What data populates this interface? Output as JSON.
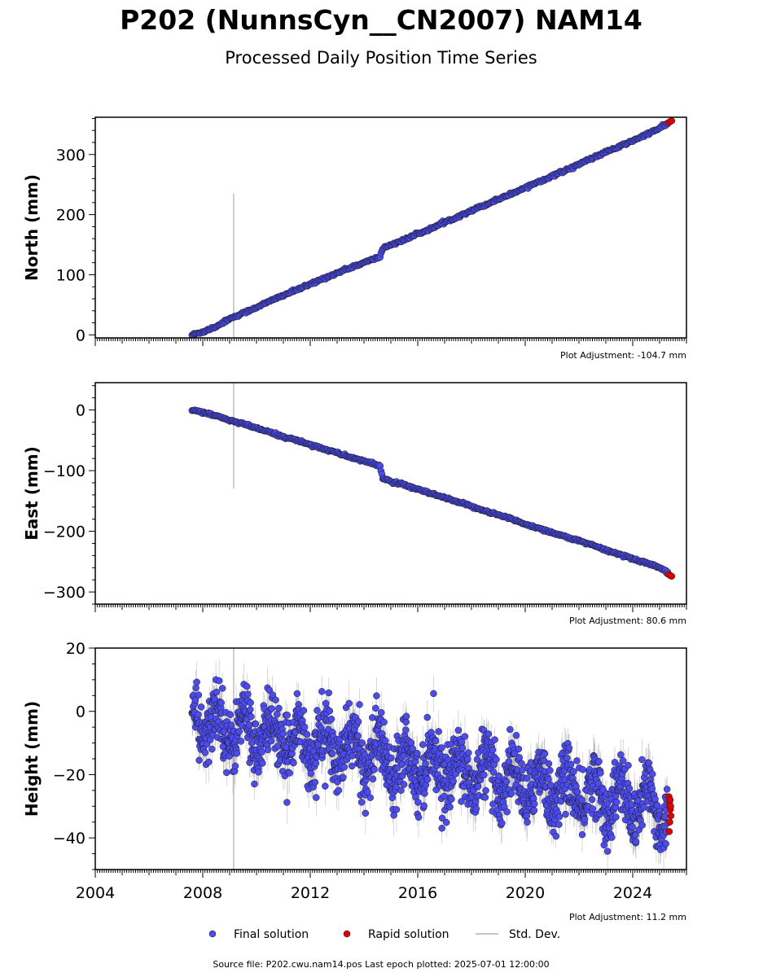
{
  "title": "P202 (NunnsCyn__CN2007) NAM14",
  "subtitle": "Processed Daily Position Time Series",
  "source_note": "Source file: P202.cwu.nam14.pos  Last epoch plotted: 2025-07-01 12:00:00",
  "legend": {
    "final": "Final solution",
    "rapid": "Rapid solution",
    "stddev": "Std. Dev."
  },
  "colors": {
    "final": "#4b4bf0",
    "rapid": "#e00000",
    "stddev": "#b4b4b4",
    "edge": "#1a1a1a"
  },
  "x_tick_labels": [
    "2004",
    "2008",
    "2012",
    "2016",
    "2020",
    "2024"
  ],
  "chart_data": [
    {
      "type": "scatter",
      "panel": "north",
      "ylabel": "North (mm)",
      "adjustment": "Plot Adjustment: -104.7 mm",
      "xlim": [
        2004.0,
        2026.0
      ],
      "ylim": [
        -5,
        362
      ],
      "yticks": [
        0,
        100,
        200,
        300
      ],
      "ytick_labels": [
        "0",
        "100",
        "200",
        "300"
      ],
      "minor_step": 20,
      "outlier_errorbar": {
        "x": 2009.15,
        "y1": -8,
        "y2": 235
      },
      "series": [
        {
          "name": "Final solution",
          "points": [
            [
              2007.6,
              0
            ],
            [
              2008.0,
              5
            ],
            [
              2008.5,
              14
            ],
            [
              2009.0,
              27
            ],
            [
              2009.5,
              36
            ],
            [
              2010.0,
              46
            ],
            [
              2010.5,
              56
            ],
            [
              2011.0,
              66
            ],
            [
              2011.5,
              75
            ],
            [
              2012.0,
              84
            ],
            [
              2012.5,
              94
            ],
            [
              2013.0,
              103
            ],
            [
              2013.5,
              112
            ],
            [
              2014.0,
              120
            ],
            [
              2014.6,
              130
            ],
            [
              2014.7,
              144
            ],
            [
              2015.0,
              150
            ],
            [
              2015.5,
              158
            ],
            [
              2016.0,
              168
            ],
            [
              2016.5,
              177
            ],
            [
              2017.0,
              187
            ],
            [
              2017.5,
              197
            ],
            [
              2018.0,
              207
            ],
            [
              2018.5,
              216
            ],
            [
              2019.0,
              226
            ],
            [
              2019.5,
              235
            ],
            [
              2020.0,
              245
            ],
            [
              2020.5,
              255
            ],
            [
              2021.0,
              264
            ],
            [
              2021.5,
              274
            ],
            [
              2022.0,
              284
            ],
            [
              2022.5,
              294
            ],
            [
              2023.0,
              304
            ],
            [
              2023.5,
              313
            ],
            [
              2024.0,
              323
            ],
            [
              2024.5,
              333
            ],
            [
              2025.0,
              344
            ],
            [
              2025.3,
              351
            ]
          ]
        },
        {
          "name": "Rapid solution",
          "points": [
            [
              2025.33,
              353
            ],
            [
              2025.4,
              355
            ],
            [
              2025.45,
              356
            ]
          ]
        }
      ]
    },
    {
      "type": "scatter",
      "panel": "east",
      "ylabel": "East (mm)",
      "adjustment": "Plot Adjustment: 80.6 mm",
      "xlim": [
        2004.0,
        2026.0
      ],
      "ylim": [
        -320,
        45
      ],
      "yticks": [
        0,
        -100,
        -200,
        -300
      ],
      "ytick_labels": [
        "0",
        "−100",
        "−200",
        "−300"
      ],
      "minor_step": 20,
      "outlier_errorbar": {
        "x": 2009.15,
        "y1": -130,
        "y2": 45
      },
      "series": [
        {
          "name": "Final solution",
          "points": [
            [
              2007.6,
              0
            ],
            [
              2008.0,
              -4
            ],
            [
              2008.5,
              -10
            ],
            [
              2009.0,
              -17
            ],
            [
              2009.5,
              -23
            ],
            [
              2010.0,
              -30
            ],
            [
              2010.5,
              -37
            ],
            [
              2011.0,
              -44
            ],
            [
              2011.5,
              -50
            ],
            [
              2012.0,
              -57
            ],
            [
              2012.5,
              -64
            ],
            [
              2013.0,
              -71
            ],
            [
              2013.5,
              -78
            ],
            [
              2014.0,
              -84
            ],
            [
              2014.6,
              -93
            ],
            [
              2014.7,
              -112
            ],
            [
              2015.0,
              -118
            ],
            [
              2015.5,
              -124
            ],
            [
              2016.0,
              -131
            ],
            [
              2016.5,
              -138
            ],
            [
              2017.0,
              -145
            ],
            [
              2017.5,
              -152
            ],
            [
              2018.0,
              -159
            ],
            [
              2018.5,
              -166
            ],
            [
              2019.0,
              -173
            ],
            [
              2019.5,
              -180
            ],
            [
              2020.0,
              -188
            ],
            [
              2020.5,
              -195
            ],
            [
              2021.0,
              -202
            ],
            [
              2021.5,
              -209
            ],
            [
              2022.0,
              -216
            ],
            [
              2022.5,
              -223
            ],
            [
              2023.0,
              -231
            ],
            [
              2023.5,
              -238
            ],
            [
              2024.0,
              -245
            ],
            [
              2024.5,
              -252
            ],
            [
              2025.0,
              -260
            ],
            [
              2025.3,
              -267
            ]
          ]
        },
        {
          "name": "Rapid solution",
          "points": [
            [
              2025.33,
              -271
            ],
            [
              2025.4,
              -273
            ],
            [
              2025.45,
              -274
            ]
          ]
        }
      ]
    },
    {
      "type": "scatter",
      "panel": "height",
      "ylabel": "Height (mm)",
      "adjustment": "Plot Adjustment: 11.2 mm",
      "xlim": [
        2004.0,
        2026.0
      ],
      "ylim": [
        -50,
        20
      ],
      "yticks": [
        20,
        0,
        -20,
        -40
      ],
      "ytick_labels": [
        "20",
        "0",
        "−20",
        "−40"
      ],
      "minor_step": 5,
      "outlier_errorbar": {
        "x": 2009.15,
        "y1": -50,
        "y2": 20
      },
      "series": [
        {
          "name": "Final solution",
          "trend": {
            "x0": 2007.6,
            "y0": -3,
            "x1": 2025.3,
            "y1": -31
          },
          "seasonal_amplitude_mm": 6,
          "scatter_mm": 5,
          "range_x": [
            2007.6,
            2025.3
          ]
        },
        {
          "name": "Rapid solution",
          "points": [
            [
              2025.35,
              -27
            ],
            [
              2025.37,
              -29
            ],
            [
              2025.4,
              -31
            ],
            [
              2025.42,
              -33
            ],
            [
              2025.38,
              -35
            ],
            [
              2025.36,
              -38
            ],
            [
              2025.41,
              -30
            ],
            [
              2025.39,
              -28
            ]
          ]
        }
      ]
    }
  ]
}
